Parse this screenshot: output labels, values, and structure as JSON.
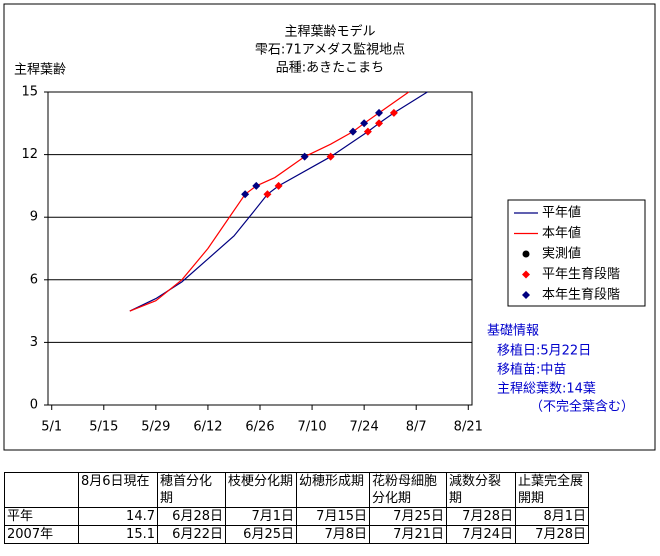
{
  "chart_data": {
    "type": "line",
    "title": [
      "主稈葉齢モデル",
      "雫石:71アメダス監視地点",
      "品種:あきたこまち"
    ],
    "y_label": "主稈葉齢",
    "xlim": [
      -1,
      113
    ],
    "xticks": [
      {
        "value": 0,
        "label": "5/1"
      },
      {
        "value": 14,
        "label": "5/15"
      },
      {
        "value": 28,
        "label": "5/29"
      },
      {
        "value": 42,
        "label": "6/12"
      },
      {
        "value": 56,
        "label": "6/26"
      },
      {
        "value": 70,
        "label": "7/10"
      },
      {
        "value": 84,
        "label": "7/24"
      },
      {
        "value": 98,
        "label": "8/7"
      },
      {
        "value": 112,
        "label": "8/21"
      }
    ],
    "ylim": [
      0,
      15
    ],
    "yticks": [
      0,
      3,
      6,
      9,
      12,
      15
    ],
    "grid": true,
    "legend": "right",
    "series": [
      {
        "name": "平年値",
        "color": "#000080",
        "marker": "none",
        "x": [
          21,
          28,
          35,
          42,
          49,
          54,
          58,
          61,
          75,
          85,
          88,
          92,
          101
        ],
        "values": [
          4.5,
          5.1,
          5.9,
          7.0,
          8.1,
          9.2,
          10.1,
          10.5,
          11.9,
          13.1,
          13.5,
          14.0,
          15.0
        ]
      },
      {
        "name": "本年値",
        "color": "#ff0000",
        "marker": "none",
        "x": [
          21,
          28,
          35,
          42,
          47,
          52,
          55,
          60,
          68,
          75,
          81,
          84,
          88,
          96
        ],
        "values": [
          4.5,
          5.0,
          6.0,
          7.5,
          8.8,
          10.1,
          10.5,
          10.9,
          11.9,
          12.5,
          13.1,
          13.5,
          14.0,
          15.0
        ]
      },
      {
        "name": "実測値",
        "color": "#000000",
        "marker": "circle",
        "x": [],
        "values": []
      },
      {
        "name": "平年生育段階",
        "color": "#ff0000",
        "marker": "diamond",
        "x": [
          58,
          61,
          75,
          85,
          88,
          92
        ],
        "values": [
          10.1,
          10.5,
          11.9,
          13.1,
          13.5,
          14.0
        ]
      },
      {
        "name": "本年生育段階",
        "color": "#000080",
        "marker": "diamond",
        "x": [
          52,
          55,
          68,
          81,
          84,
          88
        ],
        "values": [
          10.1,
          10.5,
          11.9,
          13.1,
          13.5,
          14.0
        ]
      }
    ],
    "info": [
      "基礎情報",
      "移植日:5月22日",
      "移植苗:中苗",
      "主稈総葉数:14葉",
      "（不完全葉含む）"
    ]
  },
  "table": {
    "header": [
      "8月6日現在",
      "穂首分化期",
      "枝梗分化期",
      "幼穂形成期",
      "花粉母細胞分化期",
      "減数分裂期",
      "止葉完全展開期"
    ],
    "rows": [
      [
        "平年",
        14.7,
        "6月28日",
        "7月1日",
        "7月15日",
        "7月25日",
        "7月28日",
        "8月1日"
      ],
      [
        "2007年",
        15.1,
        "6月22日",
        "6月25日",
        "7月8日",
        "7月21日",
        "7月24日",
        "7月28日"
      ]
    ]
  }
}
